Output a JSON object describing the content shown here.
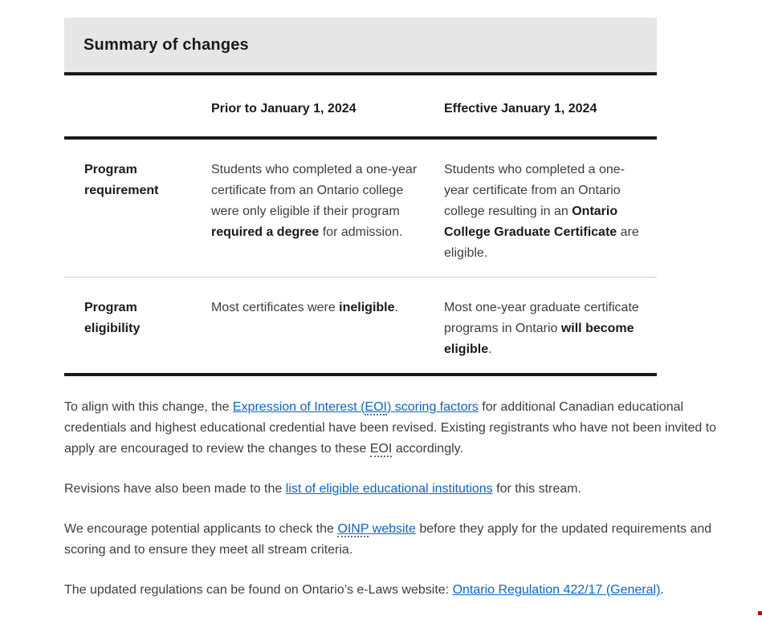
{
  "colors": {
    "header_bg": "#e6e6e6",
    "border_dark": "#1a1a1a",
    "divider": "#cccccc",
    "text": "#3d3d3d",
    "text_dark": "#1a1a1a",
    "link": "#0a66c2",
    "artifact_red": "#cc0000"
  },
  "summary": {
    "title": "Summary of changes"
  },
  "table": {
    "headers": {
      "corner": "",
      "prior": "Prior to January 1, 2024",
      "effective": "Effective January 1, 2024"
    },
    "rows": [
      {
        "label": "Program requirement",
        "prior": [
          {
            "t": "Students who completed a one-year certificate from an Ontario college were only eligible if their program "
          },
          {
            "t": "required a degree",
            "bold": true
          },
          {
            "t": " for admission."
          }
        ],
        "effective": [
          {
            "t": "Students who completed a one-year certificate from an Ontario college resulting in an "
          },
          {
            "t": "Ontario College Graduate Certificate",
            "bold": true
          },
          {
            "t": " are eligible."
          }
        ]
      },
      {
        "label": "Program eligibility",
        "prior": [
          {
            "t": "Most certificates were "
          },
          {
            "t": "ineligible",
            "bold": true
          },
          {
            "t": "."
          }
        ],
        "effective": [
          {
            "t": "Most one-year graduate certificate programs in Ontario "
          },
          {
            "t": "will become eligible",
            "bold": true
          },
          {
            "t": "."
          }
        ]
      }
    ]
  },
  "paragraphs": [
    {
      "segments": [
        {
          "t": "To align with this change, the "
        },
        {
          "t": "Expression of Interest (",
          "link": true,
          "name": "eoi-scoring-factors-link"
        },
        {
          "t": "EOI",
          "link": true,
          "abbr": true,
          "name": "eoi-scoring-factors-link"
        },
        {
          "t": ") scoring factors",
          "link": true,
          "name": "eoi-scoring-factors-link"
        },
        {
          "t": " for additional Canadian educational credentials and highest educational credential have been revised. Existing registrants who have not been invited to apply are encouraged to review the changes to these "
        },
        {
          "t": "EOI",
          "abbr": true
        },
        {
          "t": " accordingly."
        }
      ]
    },
    {
      "segments": [
        {
          "t": "Revisions have also been made to the "
        },
        {
          "t": "list of eligible educational institutions",
          "link": true,
          "name": "eligible-institutions-link"
        },
        {
          "t": " for this stream."
        }
      ]
    },
    {
      "segments": [
        {
          "t": "We encourage potential applicants to check the "
        },
        {
          "t": "OINP",
          "link": true,
          "abbr": true,
          "name": "oinp-website-link"
        },
        {
          "t": " website",
          "link": true,
          "name": "oinp-website-link"
        },
        {
          "t": " before they apply for the updated requirements and scoring and to ensure they meet all stream criteria."
        }
      ]
    },
    {
      "segments": [
        {
          "t": "The updated regulations can be found on Ontario’s e-Laws website: "
        },
        {
          "t": "Ontario Regulation 422/17 (General)",
          "link": true,
          "name": "ontario-regulation-link"
        },
        {
          "t": "."
        }
      ]
    }
  ]
}
